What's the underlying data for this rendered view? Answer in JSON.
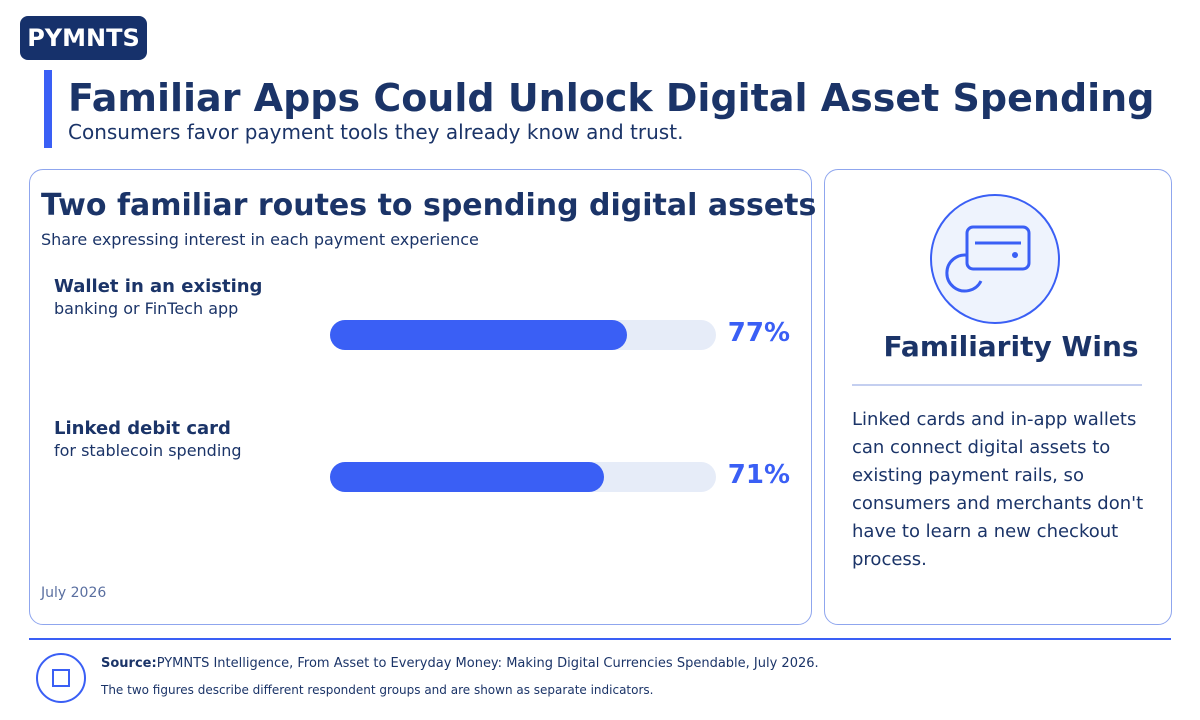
{
  "header": {
    "logo": "PYMNTS",
    "title": "Familiar Apps Could Unlock Digital Asset Spending",
    "subtitle": "Consumers favor payment tools they already know and trust."
  },
  "chart_data": {
    "type": "bar",
    "orientation": "horizontal",
    "title": "Two familiar routes to spending digital assets",
    "subtitle": "Share expressing interest in each payment experience",
    "categories": [
      "Wallet in an existing",
      "Linked debit card"
    ],
    "category_details": [
      "banking or FinTech app",
      "for stablecoin spending"
    ],
    "values": [
      77,
      71
    ],
    "value_labels": [
      "77%",
      "71%"
    ],
    "xlim": [
      0,
      100
    ],
    "color": "#3a5ff5",
    "track_color": "#e6ecf8",
    "date": "July 2026"
  },
  "side_panel": {
    "title": "Familiarity Wins",
    "body": "Linked cards and in-app wallets can connect digital assets to existing payment rails, so consumers and merchants don't have to learn a new checkout process."
  },
  "footer": {
    "source_label": "Source:",
    "source": "PYMNTS Intelligence, From Asset to Everyday Money: Making Digital Currencies Spendable, July 2026.",
    "note": "The two figures describe different respondent groups and are shown as separate indicators."
  }
}
